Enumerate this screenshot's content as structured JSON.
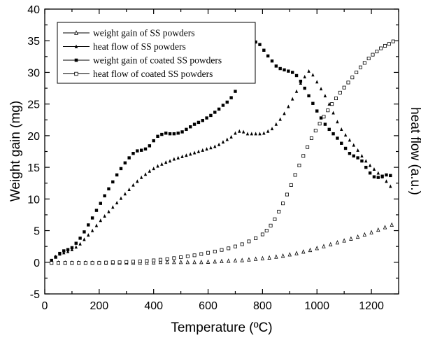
{
  "chart_data": {
    "type": "scatter",
    "title": "",
    "xlabel": "Temperature (ºC)",
    "ylabel": "Weight gain (mg)",
    "y2label": "heat flow (a.u.)",
    "xlim": [
      0,
      1300
    ],
    "ylim": [
      -5,
      40
    ],
    "xticks": [
      "0",
      "200",
      "400",
      "600",
      "800",
      "1000",
      "1200"
    ],
    "yticks": [
      "-5",
      "0",
      "5",
      "10",
      "15",
      "20",
      "25",
      "30",
      "35",
      "40"
    ],
    "xtick_values": [
      0,
      200,
      400,
      600,
      800,
      1000,
      1200
    ],
    "ytick_values": [
      -5,
      0,
      5,
      10,
      15,
      20,
      25,
      30,
      35,
      40
    ],
    "grid": false,
    "legend_position": "top-left",
    "series": [
      {
        "name": "weight gain of SS powders",
        "marker": "open-triangle",
        "x": [
          25,
          50,
          75,
          100,
          125,
          150,
          175,
          200,
          225,
          250,
          275,
          300,
          325,
          350,
          375,
          400,
          425,
          450,
          475,
          500,
          525,
          550,
          575,
          600,
          625,
          650,
          675,
          700,
          725,
          750,
          775,
          800,
          825,
          850,
          875,
          900,
          925,
          950,
          975,
          1000,
          1025,
          1050,
          1075,
          1100,
          1125,
          1150,
          1175,
          1200,
          1225,
          1250,
          1275
        ],
        "y": [
          -0.1,
          -0.1,
          -0.1,
          -0.1,
          -0.1,
          -0.1,
          -0.1,
          -0.1,
          -0.1,
          -0.1,
          -0.1,
          -0.1,
          -0.1,
          -0.1,
          -0.1,
          -0.05,
          0,
          0,
          0,
          0,
          0,
          0,
          0,
          0.05,
          0.1,
          0.15,
          0.2,
          0.25,
          0.3,
          0.4,
          0.5,
          0.6,
          0.7,
          0.85,
          1.0,
          1.2,
          1.4,
          1.65,
          1.9,
          2.2,
          2.5,
          2.8,
          3.1,
          3.4,
          3.7,
          4.0,
          4.35,
          4.7,
          5.1,
          5.5,
          5.9
        ]
      },
      {
        "name": "heat flow of SS powders",
        "marker": "filled-triangle",
        "x": [
          25,
          40,
          55,
          70,
          85,
          100,
          115,
          130,
          145,
          160,
          175,
          190,
          205,
          220,
          235,
          250,
          265,
          280,
          295,
          310,
          325,
          340,
          355,
          370,
          385,
          400,
          415,
          430,
          445,
          460,
          475,
          490,
          505,
          520,
          535,
          550,
          565,
          580,
          595,
          610,
          625,
          640,
          655,
          670,
          685,
          700,
          715,
          730,
          745,
          760,
          775,
          790,
          805,
          820,
          835,
          850,
          865,
          880,
          895,
          910,
          925,
          940,
          955,
          970,
          985,
          1000,
          1015,
          1030,
          1045,
          1060,
          1075,
          1090,
          1105,
          1120,
          1135,
          1150,
          1165,
          1180,
          1195,
          1210,
          1225,
          1240,
          1255,
          1270
        ],
        "y": [
          0.2,
          0.9,
          1.3,
          1.5,
          1.7,
          2.0,
          2.4,
          2.9,
          3.6,
          4.3,
          5.0,
          5.8,
          6.6,
          7.3,
          8.0,
          8.7,
          9.4,
          10.1,
          10.8,
          11.5,
          12.2,
          12.8,
          13.4,
          13.9,
          14.4,
          14.8,
          15.2,
          15.5,
          15.8,
          16.0,
          16.3,
          16.5,
          16.7,
          16.9,
          17.1,
          17.3,
          17.5,
          17.7,
          17.9,
          18.1,
          18.3,
          18.6,
          19.0,
          19.4,
          19.8,
          20.4,
          20.7,
          20.6,
          20.3,
          20.3,
          20.3,
          20.3,
          20.4,
          20.7,
          21.1,
          21.8,
          22.6,
          23.5,
          24.6,
          25.8,
          27.0,
          28.3,
          29.3,
          30.2,
          29.6,
          28.5,
          27.4,
          26.3,
          25.0,
          23.6,
          22.2,
          21.0,
          20.1,
          19.3,
          18.5,
          17.7,
          16.8,
          16.0,
          15.3,
          14.7,
          14.1,
          13.5,
          12.8,
          12.0
        ]
      },
      {
        "name": "weight gain of coated SS powders",
        "marker": "filled-square",
        "x": [
          25,
          40,
          55,
          70,
          85,
          100,
          115,
          130,
          145,
          160,
          175,
          190,
          205,
          220,
          235,
          250,
          265,
          280,
          295,
          310,
          325,
          340,
          355,
          370,
          385,
          400,
          415,
          430,
          445,
          460,
          475,
          490,
          505,
          520,
          535,
          550,
          565,
          580,
          595,
          610,
          625,
          640,
          655,
          670,
          685,
          700,
          715,
          730,
          745,
          760,
          775,
          790,
          805,
          820,
          835,
          850,
          865,
          880,
          895,
          910,
          925,
          940,
          955,
          970,
          985,
          1000,
          1015,
          1030,
          1045,
          1060,
          1075,
          1090,
          1105,
          1120,
          1135,
          1150,
          1165,
          1180,
          1195,
          1210,
          1225,
          1240,
          1255,
          1270
        ],
        "y": [
          0.3,
          0.8,
          1.4,
          1.8,
          2.0,
          2.3,
          3.0,
          3.8,
          4.8,
          5.9,
          7.0,
          8.2,
          9.3,
          10.5,
          11.6,
          12.7,
          13.8,
          14.8,
          15.7,
          16.5,
          17.2,
          17.6,
          17.7,
          17.9,
          18.4,
          19.2,
          19.9,
          20.2,
          20.4,
          20.3,
          20.3,
          20.4,
          20.6,
          21.0,
          21.4,
          21.8,
          22.1,
          22.4,
          22.8,
          23.2,
          23.7,
          24.2,
          24.8,
          25.3,
          26.0,
          27.0,
          28.5,
          30.2,
          32.2,
          34.2,
          34.8,
          34.4,
          33.5,
          32.6,
          31.8,
          31.0,
          30.6,
          30.4,
          30.2,
          30.0,
          29.5,
          28.6,
          27.5,
          26.3,
          25.1,
          23.9,
          22.8,
          21.8,
          21.0,
          20.3,
          19.6,
          18.8,
          18.0,
          17.2,
          16.8,
          16.5,
          16.0,
          15.0,
          14.1,
          13.5,
          13.4,
          13.6,
          13.8,
          13.7
        ]
      },
      {
        "name": "heat flow of coated SS powders",
        "marker": "open-square",
        "x": [
          25,
          50,
          75,
          100,
          125,
          150,
          175,
          200,
          225,
          250,
          275,
          300,
          325,
          350,
          375,
          400,
          425,
          450,
          475,
          500,
          525,
          550,
          575,
          600,
          625,
          650,
          675,
          700,
          725,
          750,
          775,
          800,
          815,
          830,
          845,
          860,
          875,
          890,
          905,
          920,
          935,
          950,
          965,
          980,
          995,
          1010,
          1025,
          1040,
          1055,
          1070,
          1085,
          1100,
          1115,
          1130,
          1145,
          1160,
          1175,
          1190,
          1205,
          1220,
          1235,
          1250,
          1265,
          1280
        ],
        "y": [
          -0.1,
          -0.1,
          -0.1,
          -0.1,
          -0.1,
          -0.1,
          -0.1,
          -0.1,
          -0.05,
          0,
          0,
          0.05,
          0.1,
          0.15,
          0.2,
          0.3,
          0.4,
          0.5,
          0.65,
          0.8,
          0.95,
          1.1,
          1.3,
          1.5,
          1.7,
          1.95,
          2.2,
          2.5,
          2.85,
          3.3,
          3.8,
          4.4,
          5.0,
          5.8,
          6.8,
          8.0,
          9.3,
          10.7,
          12.2,
          13.8,
          15.3,
          16.8,
          18.2,
          19.6,
          20.8,
          21.9,
          23.0,
          24.0,
          25.0,
          25.9,
          26.8,
          27.6,
          28.4,
          29.2,
          30.0,
          30.8,
          31.5,
          32.2,
          32.8,
          33.3,
          33.8,
          34.2,
          34.5,
          34.9
        ]
      }
    ]
  }
}
